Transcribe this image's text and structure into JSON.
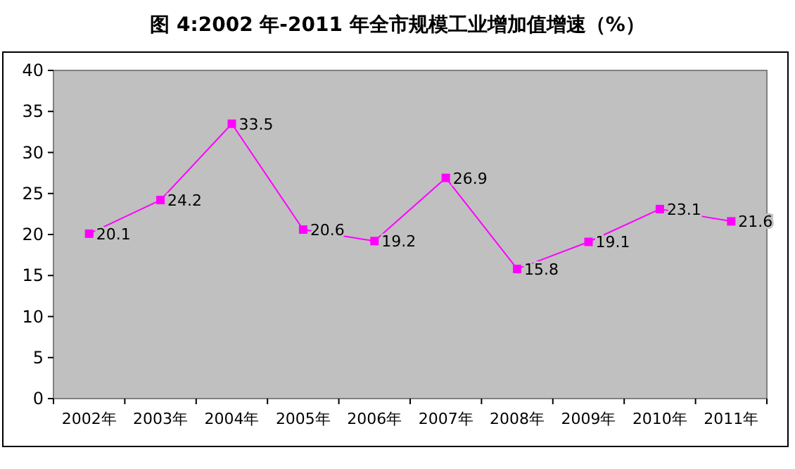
{
  "chart_data": {
    "type": "line",
    "title": "图 4:2002 年-2011 年全市规模工业增加值增速（%）",
    "categories": [
      "2002年",
      "2003年",
      "2004年",
      "2005年",
      "2006年",
      "2007年",
      "2008年",
      "2009年",
      "2010年",
      "2011年"
    ],
    "values": [
      20.1,
      24.2,
      33.5,
      20.6,
      19.2,
      26.9,
      15.8,
      19.1,
      23.1,
      21.6
    ],
    "color": "#ff00ff",
    "marker": "square",
    "data_labels": true,
    "ylim": [
      0,
      40
    ],
    "yticks": [
      0,
      5,
      10,
      15,
      20,
      25,
      30,
      35,
      40
    ],
    "grid": false
  }
}
